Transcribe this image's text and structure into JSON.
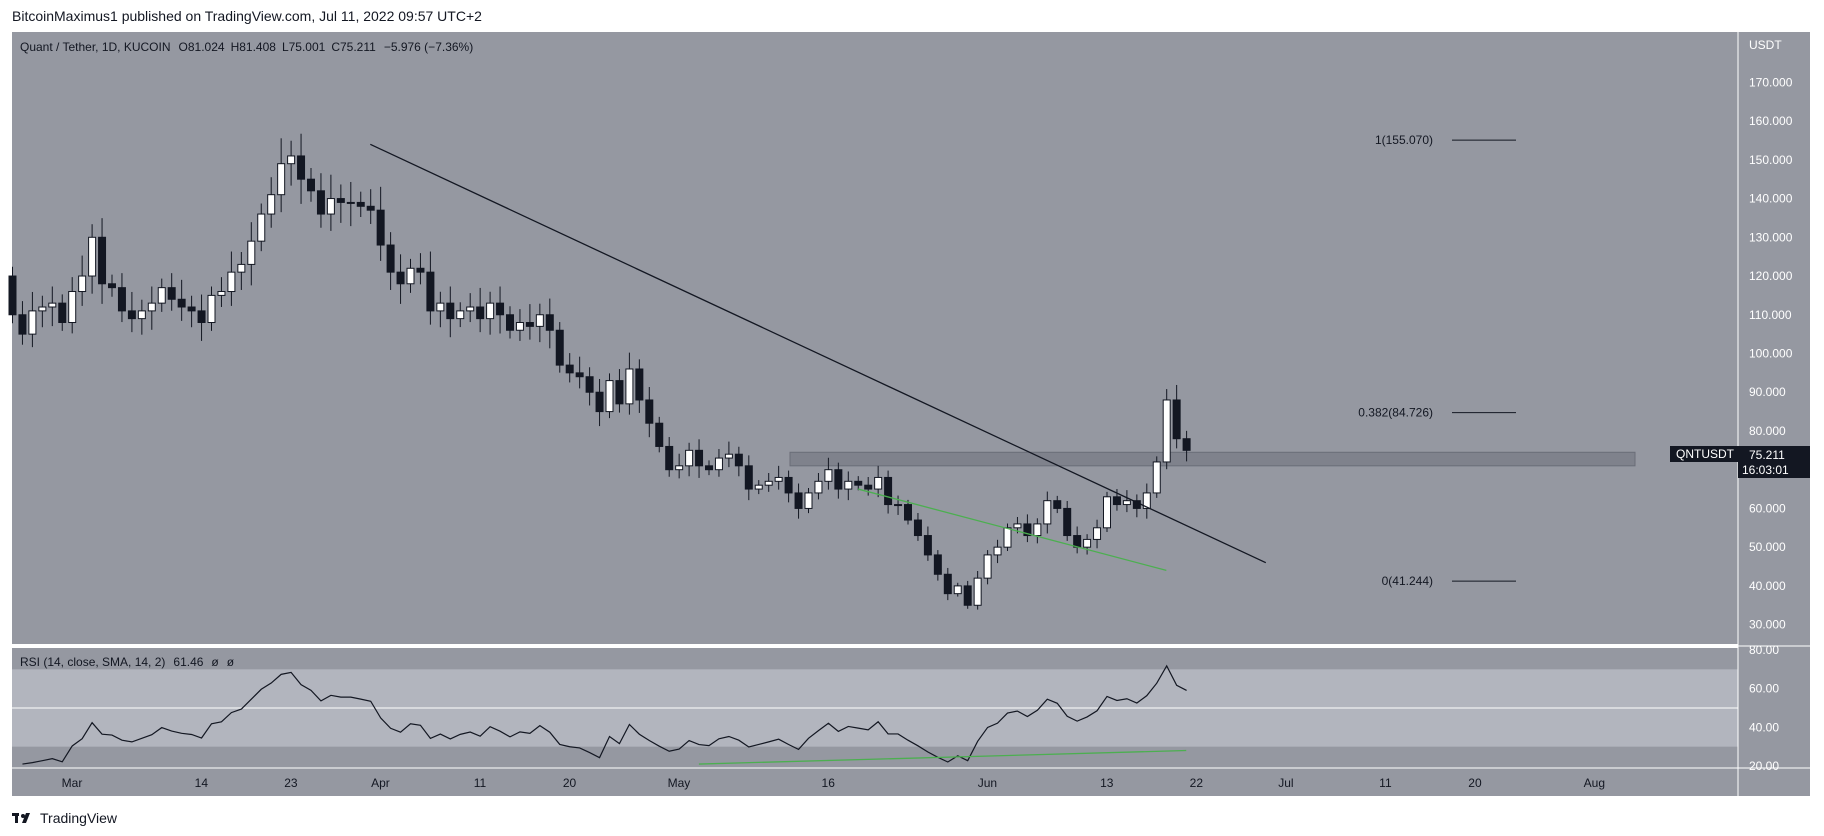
{
  "header": {
    "publish_line": "BitcoinMaximus1 published on TradingView.com, Jul 11, 2022 09:57 UTC+2"
  },
  "footer": {
    "brand": "TradingView",
    "logo_icon": "tradingview-logo-icon"
  },
  "colors": {
    "background": "#9598a1",
    "band": "#b2b5be",
    "up_candle": "#ffffff",
    "down_candle": "#131722",
    "trendline": "#131722",
    "divergence": "#4caf50",
    "price_badge": "#131722",
    "resistance_zone": "#787b86"
  },
  "legend": {
    "symbol": "Quant / Tether, 1D, KUCOIN",
    "o_label": "O",
    "o_value": "81.024",
    "h_label": "H",
    "h_value": "81.408",
    "l_label": "L",
    "l_value": "75.001",
    "c_label": "C",
    "c_value": "75.211",
    "change": "−5.976 (−7.36%)"
  },
  "price_badge": {
    "symbol": "QNTUSDT",
    "price": "75.211",
    "countdown": "16:03:01"
  },
  "rsi": {
    "label": "RSI (14, close, SMA, 14, 2)",
    "value": "61.46",
    "extra1": "ø",
    "extra2": "ø"
  },
  "chart_data": [
    {
      "type": "candlestick",
      "title": "Quant / Tether, 1D, KUCOIN",
      "y_axis_label": "USDT",
      "ylim": [
        25,
        183
      ],
      "y_ticks": [
        "170.000",
        "160.000",
        "150.000",
        "140.000",
        "130.000",
        "120.000",
        "110.000",
        "100.000",
        "90.000",
        "80.000",
        "70.000",
        "60.000",
        "50.000",
        "40.000",
        "30.000"
      ],
      "y_tick_values": [
        170,
        160,
        150,
        140,
        130,
        120,
        110,
        100,
        90,
        80,
        70,
        60,
        50,
        40,
        30
      ],
      "x_labels": [
        "Mar",
        "14",
        "23",
        "Apr",
        "11",
        "20",
        "May",
        "16",
        "Jun",
        "13",
        "22",
        "Jul",
        "11",
        "20",
        "Aug"
      ],
      "x_label_days": [
        0,
        13,
        22,
        31,
        41,
        50,
        61,
        76,
        92,
        104,
        113,
        122,
        132,
        141,
        153
      ],
      "start_date": "2022-02-20",
      "fib_levels": [
        {
          "label": "1(155.070)",
          "value": 155.07
        },
        {
          "label": "0.382(84.726)",
          "value": 84.726
        },
        {
          "label": "0(41.244)",
          "value": 41.244
        }
      ],
      "resistance_zone": [
        71,
        74.5
      ],
      "descending_trendline": [
        [
          34,
          154
        ],
        [
          124,
          46
        ]
      ],
      "divergence_line": [
        [
          78,
          65
        ],
        [
          113,
          44
        ]
      ],
      "closes": [
        110,
        105,
        111,
        112,
        113,
        108,
        116,
        120,
        130,
        118,
        117,
        111,
        109,
        111,
        113,
        117,
        114,
        112,
        111,
        108,
        115,
        116,
        121,
        123,
        129,
        136,
        141,
        149,
        151,
        145,
        142,
        136,
        140,
        139,
        139,
        138,
        137,
        128,
        121,
        118,
        122,
        121,
        111,
        113,
        109,
        111,
        112,
        109,
        113,
        110,
        106,
        108,
        107,
        110,
        106,
        97,
        95,
        94,
        90,
        85,
        93,
        87,
        96,
        88,
        82,
        76,
        70,
        71,
        75,
        71,
        70,
        73,
        74,
        71,
        65,
        66,
        67,
        68,
        64,
        60,
        64,
        67,
        70,
        65,
        67,
        66,
        65,
        68,
        61,
        61,
        57,
        53,
        48,
        43,
        38,
        40,
        35,
        42,
        48,
        50,
        55,
        56,
        53,
        56,
        62,
        60,
        53,
        50,
        52,
        55,
        63,
        61,
        62,
        60,
        64,
        72,
        88,
        78,
        75
      ],
      "rsi_ylim": [
        20,
        80
      ],
      "rsi_ticks": [
        80,
        60,
        40,
        20
      ],
      "rsi_band": [
        30,
        70
      ],
      "rsi_divergence_line": [
        [
          62,
          21
        ],
        [
          115,
          28
        ]
      ]
    }
  ]
}
